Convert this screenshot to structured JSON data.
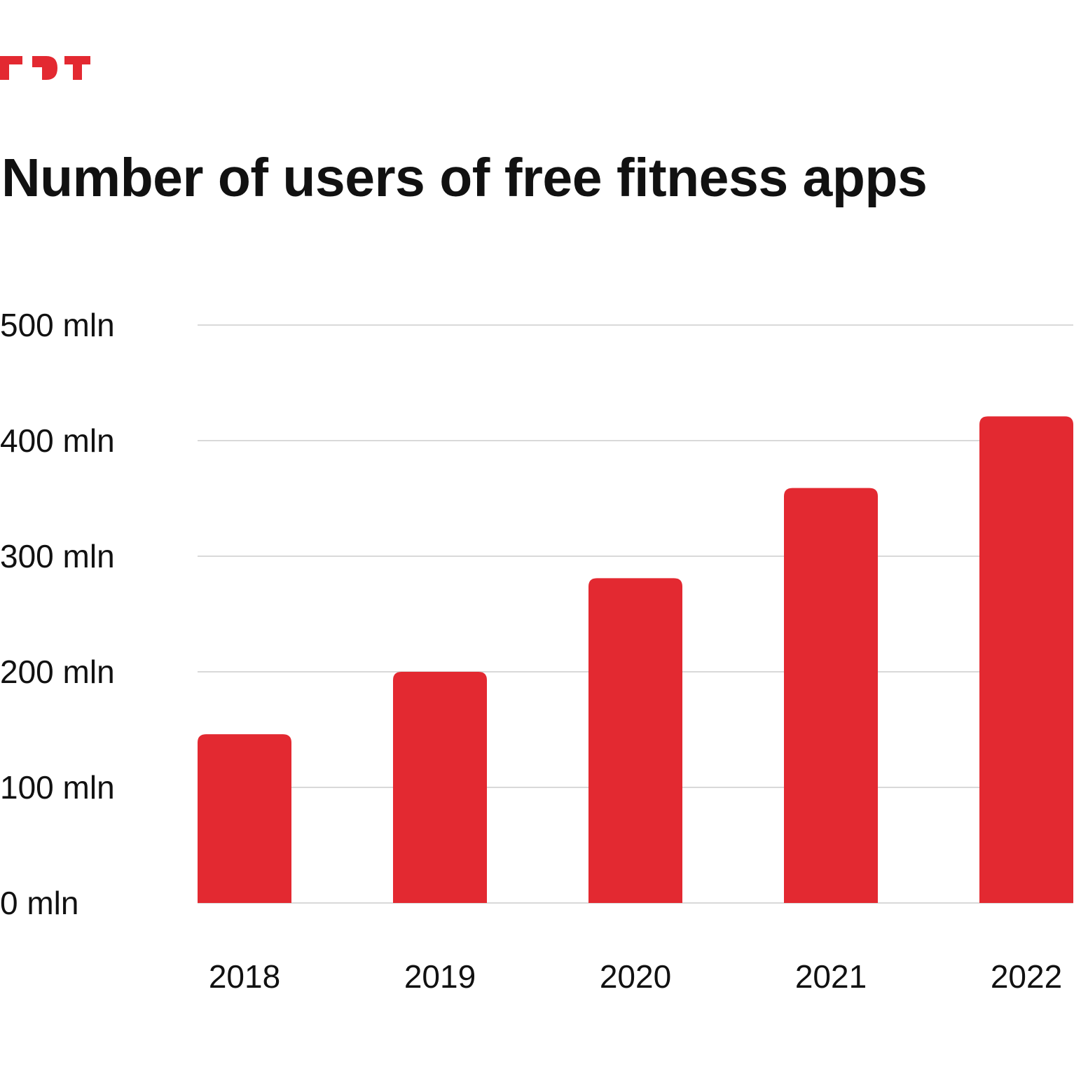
{
  "brand": {
    "logo_text": "FDT",
    "accent_color": "#e32931"
  },
  "chart_data": {
    "type": "bar",
    "title": "Number of users of free fitness apps",
    "xlabel": "",
    "ylabel": "",
    "categories": [
      "2018",
      "2019",
      "2020",
      "2021",
      "2022"
    ],
    "values": [
      146,
      200,
      281,
      359,
      421
    ],
    "unit": "mln",
    "ylim": [
      0,
      500
    ],
    "yticks": [
      0,
      100,
      200,
      300,
      400,
      500
    ],
    "ytick_labels": [
      "0 mln",
      "100 mln",
      "200 mln",
      "300 mln",
      "400 mln",
      "500 mln"
    ],
    "grid": true,
    "bar_color": "#e32931",
    "grid_color": "#d9d9d9"
  }
}
